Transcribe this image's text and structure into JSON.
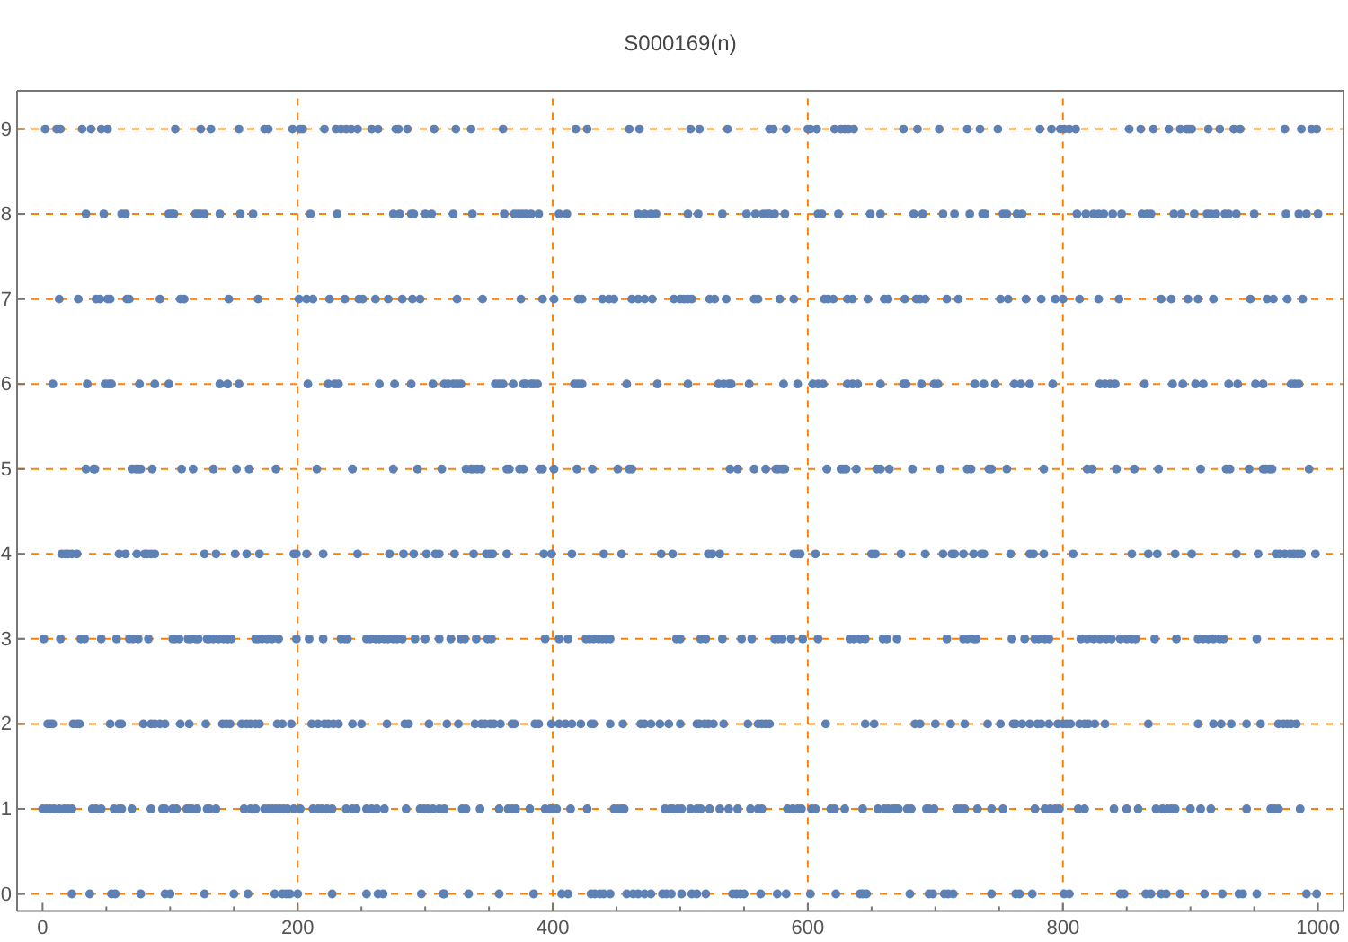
{
  "chart_data": {
    "type": "scatter",
    "title": "S000169(n)",
    "marker": "circle",
    "xlim": [
      -20,
      1020
    ],
    "ylim": [
      -0.2,
      9.45
    ],
    "xticks": [
      0,
      {
        "value": 50,
        "label": null
      },
      {
        "value": 100,
        "label": null
      },
      {
        "value": 150,
        "label": null
      },
      200,
      {
        "value": 250,
        "label": null
      },
      {
        "value": 300,
        "label": null
      },
      {
        "value": 350,
        "label": null
      },
      400,
      {
        "value": 450,
        "label": null
      },
      {
        "value": 500,
        "label": null
      },
      {
        "value": 550,
        "label": null
      },
      600,
      {
        "value": 650,
        "label": null
      },
      {
        "value": 700,
        "label": null
      },
      {
        "value": 750,
        "label": null
      },
      800,
      {
        "value": 850,
        "label": null
      },
      {
        "value": 900,
        "label": null
      },
      {
        "value": 950,
        "label": null
      },
      1000
    ],
    "yticks": [
      0,
      1,
      2,
      3,
      4,
      5,
      6,
      7,
      8,
      9
    ],
    "ref_lines": [
      {
        "axis": "y",
        "value": 0,
        "color": "#ff8000",
        "line_style": "dashed"
      },
      {
        "axis": "y",
        "value": 1,
        "color": "#ff8000",
        "line_style": "dashed"
      },
      {
        "axis": "y",
        "value": 2,
        "color": "#ff8000",
        "line_style": "dashed"
      },
      {
        "axis": "y",
        "value": 3,
        "color": "#ff8000",
        "line_style": "dashed"
      },
      {
        "axis": "y",
        "value": 4,
        "color": "#ff8000",
        "line_style": "dashed"
      },
      {
        "axis": "y",
        "value": 5,
        "color": "#ff8000",
        "line_style": "dashed"
      },
      {
        "axis": "y",
        "value": 6,
        "color": "#ff8000",
        "line_style": "dashed"
      },
      {
        "axis": "y",
        "value": 7,
        "color": "#ff8000",
        "line_style": "dashed"
      },
      {
        "axis": "y",
        "value": 8,
        "color": "#ff8000",
        "line_style": "dashed"
      },
      {
        "axis": "y",
        "value": 9,
        "color": "#ff8000",
        "line_style": "dashed"
      },
      {
        "axis": "x",
        "value": 200,
        "color": "#ff8000",
        "line_style": "dashed"
      },
      {
        "axis": "x",
        "value": 400,
        "color": "#ff8000",
        "line_style": "dashed"
      },
      {
        "axis": "x",
        "value": 600,
        "color": "#ff8000",
        "line_style": "dashed"
      },
      {
        "axis": "x",
        "value": 800,
        "color": "#ff8000",
        "line_style": "dashed"
      }
    ],
    "series": [
      {
        "color": "#5e81b5",
        "x": [
          23,
          37,
          54,
          57,
          77,
          96,
          100,
          127,
          150,
          161,
          182,
          188,
          191,
          194,
          200,
          227,
          254,
          263,
          267,
          297,
          314,
          315,
          334,
          358,
          385,
          407,
          412,
          430,
          433,
          437,
          440,
          445,
          458,
          463,
          467,
          472,
          477,
          486,
          489,
          493,
          501,
          509,
          513,
          520,
          541,
          544,
          547,
          550,
          563,
          576,
          583,
          602,
          622,
          641,
          643,
          646,
          680,
          695,
          698,
          707,
          710,
          714,
          744,
          763,
          766,
          776,
          801,
          805,
          845,
          848,
          865,
          869,
          877,
          881,
          892,
          911,
          925,
          938,
          941,
          952,
          991,
          999
        ],
        "values": [
          0,
          0,
          0,
          0,
          0,
          0,
          0,
          0,
          0,
          0,
          0,
          0,
          0,
          0,
          0,
          0,
          0,
          0,
          0,
          0,
          0,
          0,
          0,
          0,
          0,
          0,
          0,
          0,
          0,
          0,
          0,
          0,
          0,
          0,
          0,
          0,
          0,
          0,
          0,
          0,
          0,
          0,
          0,
          0,
          0,
          0,
          0,
          0,
          0,
          0,
          0,
          0,
          0,
          0,
          0,
          0,
          0,
          0,
          0,
          0,
          0,
          0,
          0,
          0,
          0,
          0,
          0,
          0,
          0,
          0,
          0,
          0,
          0,
          0,
          0,
          0,
          0,
          0,
          0,
          0,
          0,
          0
        ]
      },
      {
        "color": "#5e81b5",
        "x": [
          0,
          3,
          6,
          9,
          13,
          17,
          20,
          23,
          39,
          42,
          46,
          56,
          60,
          62,
          70,
          85,
          94,
          96,
          102,
          105,
          113,
          115,
          117,
          121,
          129,
          131,
          136,
          158,
          163,
          167,
          174,
          177,
          180,
          183,
          186,
          189,
          192,
          197,
          202,
          212,
          216,
          219,
          223,
          227,
          238,
          243,
          246,
          254,
          258,
          262,
          268,
          285,
          296,
          299,
          302,
          306,
          311,
          315,
          329,
          332,
          343,
          358,
          365,
          368,
          371,
          382,
          394,
          398,
          400,
          403,
          414,
          427,
          448,
          451,
          454,
          456,
          488,
          492,
          494,
          498,
          501,
          508,
          513,
          516,
          523,
          531,
          538,
          545,
          555,
          561,
          564,
          584,
          588,
          592,
          595,
          603,
          606,
          618,
          621,
          629,
          643,
          655,
          660,
          663,
          667,
          669,
          671,
          678,
          681,
          693,
          695,
          699,
          717,
          720,
          723,
          733,
          744,
          753,
          778,
          786,
          790,
          794,
          797,
          812,
          817,
          840,
          850,
          859,
          873,
          878,
          882,
          885,
          888,
          900,
          908,
          916,
          944,
          963,
          966,
          969,
          986
        ],
        "values": [
          1,
          1,
          1,
          1,
          1,
          1,
          1,
          1,
          1,
          1,
          1,
          1,
          1,
          1,
          1,
          1,
          1,
          1,
          1,
          1,
          1,
          1,
          1,
          1,
          1,
          1,
          1,
          1,
          1,
          1,
          1,
          1,
          1,
          1,
          1,
          1,
          1,
          1,
          1,
          1,
          1,
          1,
          1,
          1,
          1,
          1,
          1,
          1,
          1,
          1,
          1,
          1,
          1,
          1,
          1,
          1,
          1,
          1,
          1,
          1,
          1,
          1,
          1,
          1,
          1,
          1,
          1,
          1,
          1,
          1,
          1,
          1,
          1,
          1,
          1,
          1,
          1,
          1,
          1,
          1,
          1,
          1,
          1,
          1,
          1,
          1,
          1,
          1,
          1,
          1,
          1,
          1,
          1,
          1,
          1,
          1,
          1,
          1,
          1,
          1,
          1,
          1,
          1,
          1,
          1,
          1,
          1,
          1,
          1,
          1,
          1,
          1,
          1,
          1,
          1,
          1,
          1,
          1,
          1,
          1,
          1,
          1,
          1,
          1,
          1,
          1,
          1,
          1,
          1,
          1,
          1,
          1,
          1,
          1,
          1,
          1,
          1,
          1,
          1,
          1,
          1
        ]
      },
      {
        "color": "#5e81b5",
        "x": [
          4,
          6,
          8,
          24,
          27,
          29,
          53,
          60,
          62,
          79,
          85,
          88,
          92,
          96,
          108,
          115,
          128,
          141,
          144,
          147,
          156,
          160,
          163,
          167,
          170,
          184,
          188,
          195,
          211,
          216,
          221,
          224,
          228,
          232,
          243,
          250,
          270,
          284,
          287,
          303,
          317,
          326,
          339,
          344,
          347,
          351,
          354,
          359,
          368,
          370,
          386,
          389,
          399,
          405,
          410,
          415,
          422,
          430,
          432,
          445,
          455,
          469,
          472,
          477,
          484,
          491,
          500,
          513,
          515,
          519,
          522,
          526,
          534,
          553,
          561,
          564,
          567,
          570,
          614,
          645,
          652,
          684,
          688,
          700,
          712,
          723,
          741,
          751,
          761,
          763,
          768,
          774,
          780,
          783,
          789,
          796,
          800,
          803,
          806,
          813,
          817,
          820,
          825,
          833,
          867,
          906,
          918,
          924,
          932,
          944,
          955,
          969,
          973,
          976,
          979,
          983
        ],
        "values": [
          2,
          2,
          2,
          2,
          2,
          2,
          2,
          2,
          2,
          2,
          2,
          2,
          2,
          2,
          2,
          2,
          2,
          2,
          2,
          2,
          2,
          2,
          2,
          2,
          2,
          2,
          2,
          2,
          2,
          2,
          2,
          2,
          2,
          2,
          2,
          2,
          2,
          2,
          2,
          2,
          2,
          2,
          2,
          2,
          2,
          2,
          2,
          2,
          2,
          2,
          2,
          2,
          2,
          2,
          2,
          2,
          2,
          2,
          2,
          2,
          2,
          2,
          2,
          2,
          2,
          2,
          2,
          2,
          2,
          2,
          2,
          2,
          2,
          2,
          2,
          2,
          2,
          2,
          2,
          2,
          2,
          2,
          2,
          2,
          2,
          2,
          2,
          2,
          2,
          2,
          2,
          2,
          2,
          2,
          2,
          2,
          2,
          2,
          2,
          2,
          2,
          2,
          2,
          2,
          2,
          2,
          2,
          2,
          2,
          2,
          2,
          2,
          2,
          2,
          2,
          2
        ]
      },
      {
        "color": "#5e81b5",
        "x": [
          1,
          14,
          30,
          33,
          46,
          58,
          68,
          71,
          75,
          83,
          102,
          104,
          107,
          114,
          116,
          120,
          122,
          129,
          131,
          134,
          138,
          142,
          145,
          148,
          167,
          169,
          172,
          176,
          180,
          185,
          199,
          209,
          220,
          234,
          237,
          239,
          254,
          257,
          261,
          264,
          268,
          271,
          275,
          278,
          282,
          292,
          300,
          311,
          320,
          328,
          331,
          340,
          349,
          352,
          394,
          405,
          412,
          426,
          429,
          432,
          436,
          439,
          442,
          445,
          497,
          500,
          516,
          520,
          533,
          548,
          556,
          574,
          577,
          580,
          587,
          596,
          608,
          633,
          636,
          641,
          645,
          659,
          662,
          670,
          709,
          722,
          725,
          730,
          732,
          760,
          770,
          778,
          781,
          786,
          789,
          814,
          819,
          824,
          829,
          834,
          838,
          845,
          850,
          854,
          857,
          872,
          889,
          906,
          910,
          914,
          918,
          923,
          926,
          952
        ],
        "values": [
          3,
          3,
          3,
          3,
          3,
          3,
          3,
          3,
          3,
          3,
          3,
          3,
          3,
          3,
          3,
          3,
          3,
          3,
          3,
          3,
          3,
          3,
          3,
          3,
          3,
          3,
          3,
          3,
          3,
          3,
          3,
          3,
          3,
          3,
          3,
          3,
          3,
          3,
          3,
          3,
          3,
          3,
          3,
          3,
          3,
          3,
          3,
          3,
          3,
          3,
          3,
          3,
          3,
          3,
          3,
          3,
          3,
          3,
          3,
          3,
          3,
          3,
          3,
          3,
          3,
          3,
          3,
          3,
          3,
          3,
          3,
          3,
          3,
          3,
          3,
          3,
          3,
          3,
          3,
          3,
          3,
          3,
          3,
          3,
          3,
          3,
          3,
          3,
          3,
          3,
          3,
          3,
          3,
          3,
          3,
          3,
          3,
          3,
          3,
          3,
          3,
          3,
          3,
          3,
          3,
          3,
          3,
          3,
          3,
          3,
          3,
          3,
          3,
          3
        ]
      },
      {
        "color": "#5e81b5",
        "x": [
          15,
          18,
          20,
          23,
          27,
          60,
          65,
          74,
          80,
          82,
          85,
          88,
          127,
          136,
          151,
          160,
          170,
          197,
          199,
          207,
          220,
          247,
          272,
          283,
          291,
          301,
          308,
          311,
          323,
          338,
          348,
          351,
          353,
          364,
          393,
          399,
          415,
          440,
          454,
          485,
          494,
          522,
          525,
          531,
          589,
          592,
          594,
          606,
          650,
          653,
          673,
          692,
          706,
          713,
          715,
          722,
          730,
          736,
          738,
          759,
          774,
          777,
          785,
          808,
          854,
          867,
          874,
          888,
          901,
          936,
          953,
          967,
          970,
          974,
          978,
          981,
          984,
          987,
          998
        ],
        "values": [
          4,
          4,
          4,
          4,
          4,
          4,
          4,
          4,
          4,
          4,
          4,
          4,
          4,
          4,
          4,
          4,
          4,
          4,
          4,
          4,
          4,
          4,
          4,
          4,
          4,
          4,
          4,
          4,
          4,
          4,
          4,
          4,
          4,
          4,
          4,
          4,
          4,
          4,
          4,
          4,
          4,
          4,
          4,
          4,
          4,
          4,
          4,
          4,
          4,
          4,
          4,
          4,
          4,
          4,
          4,
          4,
          4,
          4,
          4,
          4,
          4,
          4,
          4,
          4,
          4,
          4,
          4,
          4,
          4,
          4,
          4,
          4,
          4,
          4,
          4,
          4,
          4,
          4,
          4
        ]
      },
      {
        "color": "#5e81b5",
        "x": [
          34,
          40,
          41,
          70,
          73,
          75,
          77,
          86,
          109,
          118,
          134,
          152,
          162,
          183,
          215,
          243,
          275,
          294,
          313,
          332,
          336,
          338,
          341,
          344,
          364,
          366,
          374,
          377,
          390,
          392,
          401,
          419,
          431,
          451,
          460,
          462,
          539,
          545,
          558,
          567,
          575,
          577,
          580,
          582,
          615,
          626,
          628,
          630,
          638,
          654,
          657,
          664,
          682,
          704,
          725,
          728,
          742,
          744,
          756,
          785,
          819,
          823,
          842,
          856,
          875,
          908,
          928,
          931,
          946,
          957,
          959,
          962,
          964,
          993
        ],
        "values": [
          5,
          5,
          5,
          5,
          5,
          5,
          5,
          5,
          5,
          5,
          5,
          5,
          5,
          5,
          5,
          5,
          5,
          5,
          5,
          5,
          5,
          5,
          5,
          5,
          5,
          5,
          5,
          5,
          5,
          5,
          5,
          5,
          5,
          5,
          5,
          5,
          5,
          5,
          5,
          5,
          5,
          5,
          5,
          5,
          5,
          5,
          5,
          5,
          5,
          5,
          5,
          5,
          5,
          5,
          5,
          5,
          5,
          5,
          5,
          5,
          5,
          5,
          5,
          5,
          5,
          5,
          5,
          5,
          5,
          5,
          5,
          5,
          5,
          5
        ]
      },
      {
        "color": "#5e81b5",
        "x": [
          8,
          35,
          49,
          52,
          54,
          76,
          88,
          99,
          139,
          145,
          154,
          208,
          224,
          229,
          232,
          264,
          276,
          289,
          306,
          315,
          318,
          322,
          325,
          328,
          355,
          358,
          361,
          369,
          377,
          379,
          383,
          385,
          388,
          417,
          420,
          423,
          458,
          482,
          506,
          530,
          534,
          538,
          540,
          554,
          581,
          592,
          604,
          608,
          612,
          631,
          635,
          639,
          657,
          675,
          677,
          689,
          699,
          702,
          731,
          738,
          747,
          762,
          767,
          774,
          792,
          829,
          833,
          837,
          841,
          864,
          886,
          894,
          904,
          910,
          930,
          937,
          951,
          957,
          979,
          982,
          985
        ],
        "values": [
          6,
          6,
          6,
          6,
          6,
          6,
          6,
          6,
          6,
          6,
          6,
          6,
          6,
          6,
          6,
          6,
          6,
          6,
          6,
          6,
          6,
          6,
          6,
          6,
          6,
          6,
          6,
          6,
          6,
          6,
          6,
          6,
          6,
          6,
          6,
          6,
          6,
          6,
          6,
          6,
          6,
          6,
          6,
          6,
          6,
          6,
          6,
          6,
          6,
          6,
          6,
          6,
          6,
          6,
          6,
          6,
          6,
          6,
          6,
          6,
          6,
          6,
          6,
          6,
          6,
          6,
          6,
          6,
          6,
          6,
          6,
          6,
          6,
          6,
          6,
          6,
          6,
          6,
          6,
          6,
          6
        ]
      },
      {
        "color": "#5e81b5",
        "x": [
          13,
          28,
          42,
          45,
          51,
          53,
          66,
          68,
          92,
          108,
          111,
          146,
          169,
          201,
          207,
          212,
          225,
          237,
          248,
          251,
          261,
          271,
          282,
          290,
          296,
          325,
          345,
          375,
          392,
          401,
          420,
          423,
          439,
          444,
          448,
          462,
          467,
          472,
          478,
          495,
          500,
          503,
          506,
          509,
          523,
          527,
          536,
          558,
          561,
          578,
          589,
          613,
          616,
          620,
          631,
          635,
          647,
          660,
          663,
          676,
          685,
          688,
          692,
          709,
          718,
          751,
          757,
          771,
          783,
          794,
          800,
          813,
          828,
          844,
          877,
          885,
          898,
          906,
          918,
          947,
          960,
          965,
          976,
          988
        ],
        "values": [
          7,
          7,
          7,
          7,
          7,
          7,
          7,
          7,
          7,
          7,
          7,
          7,
          7,
          7,
          7,
          7,
          7,
          7,
          7,
          7,
          7,
          7,
          7,
          7,
          7,
          7,
          7,
          7,
          7,
          7,
          7,
          7,
          7,
          7,
          7,
          7,
          7,
          7,
          7,
          7,
          7,
          7,
          7,
          7,
          7,
          7,
          7,
          7,
          7,
          7,
          7,
          7,
          7,
          7,
          7,
          7,
          7,
          7,
          7,
          7,
          7,
          7,
          7,
          7,
          7,
          7,
          7,
          7,
          7,
          7,
          7,
          7,
          7,
          7,
          7,
          7,
          7,
          7,
          7,
          7,
          7,
          7,
          7,
          7
        ]
      },
      {
        "color": "#5e81b5",
        "x": [
          34,
          48,
          62,
          65,
          99,
          101,
          103,
          120,
          122,
          124,
          127,
          139,
          155,
          165,
          210,
          231,
          275,
          280,
          289,
          291,
          300,
          305,
          322,
          337,
          362,
          370,
          373,
          376,
          379,
          383,
          389,
          405,
          411,
          467,
          472,
          477,
          481,
          506,
          514,
          533,
          552,
          559,
          565,
          568,
          570,
          574,
          582,
          608,
          611,
          624,
          649,
          657,
          683,
          690,
          706,
          715,
          727,
          737,
          739,
          753,
          756,
          764,
          768,
          811,
          818,
          824,
          828,
          832,
          839,
          846,
          862,
          866,
          869,
          887,
          893,
          903,
          913,
          916,
          920,
          927,
          930,
          936,
          950,
          975,
          985,
          991,
          1000
        ],
        "values": [
          8,
          8,
          8,
          8,
          8,
          8,
          8,
          8,
          8,
          8,
          8,
          8,
          8,
          8,
          8,
          8,
          8,
          8,
          8,
          8,
          8,
          8,
          8,
          8,
          8,
          8,
          8,
          8,
          8,
          8,
          8,
          8,
          8,
          8,
          8,
          8,
          8,
          8,
          8,
          8,
          8,
          8,
          8,
          8,
          8,
          8,
          8,
          8,
          8,
          8,
          8,
          8,
          8,
          8,
          8,
          8,
          8,
          8,
          8,
          8,
          8,
          8,
          8,
          8,
          8,
          8,
          8,
          8,
          8,
          8,
          8,
          8,
          8,
          8,
          8,
          8,
          8,
          8,
          8,
          8,
          8,
          8,
          8,
          8,
          8,
          8,
          8
        ]
      },
      {
        "color": "#5e81b5",
        "x": [
          2,
          11,
          14,
          31,
          38,
          46,
          51,
          104,
          124,
          132,
          154,
          174,
          177,
          196,
          202,
          204,
          221,
          230,
          234,
          238,
          242,
          247,
          258,
          263,
          277,
          279,
          286,
          307,
          324,
          336,
          361,
          418,
          427,
          460,
          468,
          508,
          515,
          537,
          570,
          573,
          583,
          600,
          602,
          607,
          621,
          626,
          629,
          632,
          636,
          675,
          686,
          703,
          725,
          735,
          749,
          782,
          791,
          798,
          801,
          805,
          810,
          852,
          861,
          871,
          883,
          892,
          897,
          899,
          901,
          914,
          923,
          934,
          939,
          974,
          987,
          995,
          999
        ],
        "values": [
          9,
          9,
          9,
          9,
          9,
          9,
          9,
          9,
          9,
          9,
          9,
          9,
          9,
          9,
          9,
          9,
          9,
          9,
          9,
          9,
          9,
          9,
          9,
          9,
          9,
          9,
          9,
          9,
          9,
          9,
          9,
          9,
          9,
          9,
          9,
          9,
          9,
          9,
          9,
          9,
          9,
          9,
          9,
          9,
          9,
          9,
          9,
          9,
          9,
          9,
          9,
          9,
          9,
          9,
          9,
          9,
          9,
          9,
          9,
          9,
          9,
          9,
          9,
          9,
          9,
          9,
          9,
          9,
          9,
          9,
          9,
          9,
          9,
          9,
          9,
          9,
          9
        ]
      }
    ]
  }
}
